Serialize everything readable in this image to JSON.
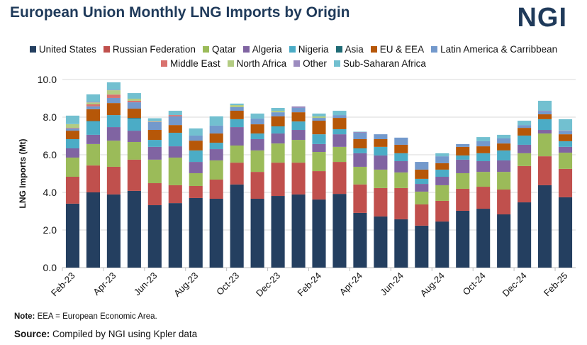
{
  "header": {
    "title": "European Union Monthly LNG Imports by Origin",
    "logo": "NGI"
  },
  "footer": {
    "note_label": "Note:",
    "note_text": " EEA = European Economic Area.",
    "source_label": "Source:",
    "source_text": " Compiled by NGI using Kpler data"
  },
  "chart_data": {
    "type": "bar",
    "stacked": true,
    "title": "European Union Monthly LNG Imports by Origin",
    "ylabel": "LNG Imports (Mt)",
    "xlabel": "",
    "ylim": [
      0,
      10
    ],
    "yticks": [
      "0.0",
      "2.0",
      "4.0",
      "6.0",
      "8.0",
      "10.0"
    ],
    "grid": true,
    "legend_placement": "top",
    "categories": [
      "Feb-23",
      "Mar-23",
      "Apr-23",
      "May-23",
      "Jun-23",
      "Jul-23",
      "Aug-23",
      "Sep-23",
      "Oct-23",
      "Nov-23",
      "Dec-23",
      "Jan-24",
      "Feb-24",
      "Mar-24",
      "Apr-24",
      "May-24",
      "Jun-24",
      "Jul-24",
      "Aug-24",
      "Sep-24",
      "Oct-24",
      "Nov-24",
      "Dec-24",
      "Jan-25",
      "Feb-25"
    ],
    "xtick_labels": [
      "Feb-23",
      "Apr-23",
      "Jun-23",
      "Aug-23",
      "Oct-23",
      "Dec-23",
      "Feb-24",
      "Apr-24",
      "Jun-24",
      "Aug-24",
      "Oct-24",
      "Dec-24",
      "Feb-25"
    ],
    "series": [
      {
        "name": "United States",
        "color": "#243F60",
        "values": [
          3.4,
          4.0,
          3.89,
          4.08,
          3.32,
          3.43,
          3.7,
          3.66,
          4.42,
          3.66,
          3.81,
          3.89,
          3.62,
          3.92,
          2.91,
          2.72,
          2.57,
          2.23,
          2.45,
          3.02,
          3.13,
          2.83,
          3.47,
          4.38,
          3.74
        ]
      },
      {
        "name": "Russian Federation",
        "color": "#C0504D",
        "values": [
          1.43,
          1.43,
          1.47,
          1.66,
          1.17,
          0.95,
          0.64,
          1.02,
          1.16,
          1.43,
          1.77,
          1.69,
          1.51,
          1.7,
          1.51,
          1.51,
          1.66,
          1.13,
          1.1,
          1.17,
          1.17,
          1.32,
          1.93,
          1.54,
          1.51
        ]
      },
      {
        "name": "Qatar",
        "color": "#9BBB59",
        "values": [
          1.02,
          1.14,
          1.39,
          0.94,
          1.25,
          1.47,
          0.68,
          1.02,
          0.91,
          1.14,
          1.02,
          1.21,
          1.02,
          0.8,
          0.94,
          0.98,
          0.83,
          0.68,
          0.83,
          0.83,
          0.79,
          0.94,
          0.68,
          1.21,
          0.86
        ]
      },
      {
        "name": "Algeria",
        "color": "#8064A2",
        "values": [
          0.49,
          0.49,
          0.72,
          0.6,
          0.68,
          0.6,
          0.6,
          0.6,
          0.98,
          0.6,
          0.53,
          0.53,
          0.42,
          0.67,
          0.72,
          0.75,
          0.6,
          0.41,
          0.45,
          0.72,
          0.57,
          0.61,
          0.45,
          0.19,
          0.31
        ]
      },
      {
        "name": "Nigeria",
        "color": "#4BACC6",
        "values": [
          0.49,
          0.71,
          0.64,
          0.64,
          0.37,
          0.72,
          0.61,
          0.34,
          0.42,
          0.3,
          0.38,
          0.45,
          0.52,
          0.27,
          0.26,
          0.46,
          0.42,
          0.27,
          0.38,
          0.22,
          0.42,
          0.53,
          0.49,
          0.57,
          0.3
        ]
      },
      {
        "name": "Asia",
        "color": "#1F6B75",
        "values": [
          0,
          0.03,
          0,
          0.04,
          0,
          0,
          0,
          0,
          0,
          0,
          0,
          0,
          0,
          0,
          0,
          0,
          0,
          0,
          0,
          0,
          0,
          0,
          0,
          0,
          0
        ]
      },
      {
        "name": "EU & EEA",
        "color": "#B65708",
        "values": [
          0.45,
          0.62,
          0.64,
          0.49,
          0.53,
          0.41,
          0.52,
          0.49,
          0.45,
          0.49,
          0.53,
          0.49,
          0.72,
          0.6,
          0.49,
          0.41,
          0.45,
          0.49,
          0.34,
          0.46,
          0.37,
          0.37,
          0.41,
          0.26,
          0.37
        ]
      },
      {
        "name": "Latin America & Carribbean",
        "color": "#7399CC",
        "values": [
          0.12,
          0.15,
          0.27,
          0.34,
          0.42,
          0.46,
          0.27,
          0.42,
          0.19,
          0.3,
          0.22,
          0.23,
          0.15,
          0.15,
          0.34,
          0.26,
          0.38,
          0.41,
          0.37,
          0.15,
          0.27,
          0.27,
          0.15,
          0.15,
          0.16
        ]
      },
      {
        "name": "Middle East",
        "color": "#D9726F",
        "values": [
          0.03,
          0.11,
          0.18,
          0.08,
          0.02,
          0.07,
          0,
          0,
          0,
          0,
          0,
          0,
          0,
          0,
          0,
          0,
          0,
          0,
          0,
          0,
          0,
          0,
          0,
          0,
          0
        ]
      },
      {
        "name": "North Africa",
        "color": "#B3CC82",
        "values": [
          0.2,
          0.1,
          0.23,
          0.11,
          0.02,
          0,
          0,
          0,
          0.11,
          0,
          0.08,
          0,
          0.08,
          0,
          0,
          0,
          0,
          0,
          0,
          0,
          0,
          0,
          0,
          0,
          0
        ]
      },
      {
        "name": "Other",
        "color": "#9C8CBF",
        "values": [
          0,
          0.03,
          0.02,
          0,
          0,
          0,
          0,
          0,
          0,
          0,
          0,
          0.08,
          0,
          0,
          0.04,
          0,
          0,
          0,
          0,
          0,
          0,
          0,
          0,
          0.04,
          0.04
        ]
      },
      {
        "name": "Sub-Saharan Africa",
        "color": "#72C0D0",
        "values": [
          0.45,
          0.4,
          0.4,
          0.3,
          0.16,
          0.23,
          0.38,
          0.49,
          0.08,
          0.27,
          0.15,
          0,
          0.15,
          0.23,
          0.02,
          0,
          0,
          0,
          0.16,
          0,
          0.22,
          0.19,
          0.23,
          0.53,
          0.6
        ]
      }
    ]
  }
}
